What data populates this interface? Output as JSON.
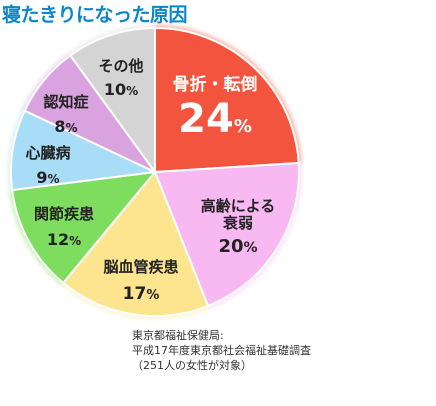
{
  "chart_data": {
    "type": "pie",
    "title": "寝たきりになった原因",
    "unit": "%",
    "slices": [
      {
        "label": "骨折・転倒",
        "value": 24,
        "color": "#f2543e"
      },
      {
        "label": "高齢による衰弱",
        "label_lines": [
          "高齢による",
          "衰弱"
        ],
        "value": 20,
        "color": "#f8b8f2"
      },
      {
        "label": "脳血管疾患",
        "value": 17,
        "color": "#fde48e"
      },
      {
        "label": "関節疾患",
        "value": 12,
        "color": "#7edc5e"
      },
      {
        "label": "心臓病",
        "value": 9,
        "color": "#a9ddf7"
      },
      {
        "label": "認知症",
        "value": 8,
        "color": "#d8a3df"
      },
      {
        "label": "その他",
        "value": 10,
        "color": "#d4d4d4"
      }
    ]
  },
  "source": {
    "line1": "東京都福祉保健局:",
    "line2": "平成17年度東京都社会福祉基礎調査",
    "line3": "（251人の女性が対象）"
  }
}
